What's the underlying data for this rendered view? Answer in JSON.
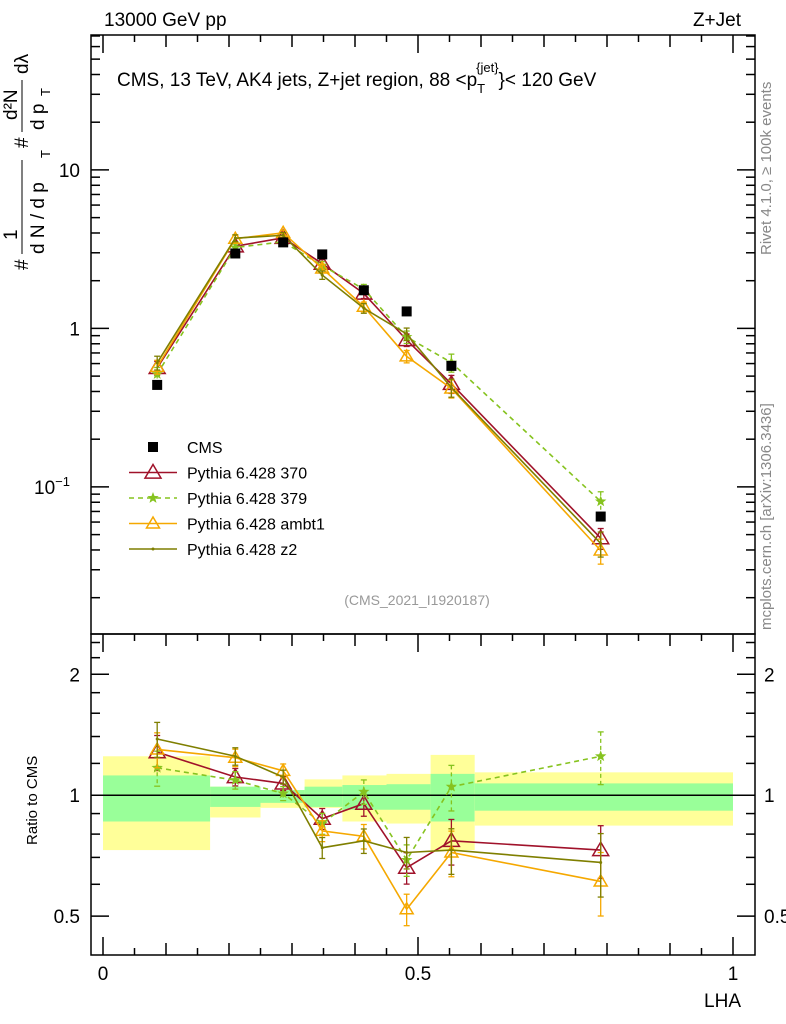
{
  "header": {
    "left": "13000 GeV pp",
    "right": "Z+Jet"
  },
  "side_labels": {
    "top": "Rivet 4.1.0, ≥ 100k events",
    "bottom": "mcplots.cern.ch [arXiv:1306.3436]"
  },
  "colors": {
    "cms": "#000000",
    "p370": "#a0122a",
    "p379": "#86c31f",
    "ambt1": "#f5a800",
    "z2": "#7f7f00",
    "band_outer": "#ffff99",
    "band_inner": "#99ff99"
  },
  "chart_data": [
    {
      "type": "line",
      "panel": "main",
      "title": "CMS, 13 TeV, AK4 jets, Z+jet region, 88 < p_T^{jet} < 120 GeV",
      "title_parts": {
        "pre": "CMS, 13 TeV, AK4 jets, Z+jet region, 88 <p",
        "sub": "T",
        "sup": "{jet}",
        "post": "}< 120 GeV"
      },
      "analysis_label": "(CMS_2021_I1920187)",
      "xlabel": "LHA",
      "ylabel": "1/(dN/dp_T) d²N/(dp_T dλ)",
      "ylabel_parts": {
        "num1": "1",
        "den1": "d N / d p",
        "num2": "d²N",
        "den2": "d p",
        "lam": "dλ",
        "T": "T",
        "hash": "#"
      },
      "yscale": "log",
      "xlim": [
        -0.02,
        1.03
      ],
      "ylim": [
        0.0118,
        71
      ],
      "ytick_labels": [
        {
          "v": 10,
          "label": "10"
        },
        {
          "v": 1,
          "label": "1"
        },
        {
          "v": 0.1,
          "label": "10",
          "sup": "−1"
        }
      ],
      "x": [
        0.086,
        0.21,
        0.286,
        0.348,
        0.414,
        0.482,
        0.553,
        0.79
      ],
      "series": [
        {
          "key": "cms",
          "name": "CMS",
          "values": [
            0.44,
            2.97,
            3.49,
            2.93,
            1.74,
            1.28,
            0.58,
            0.065
          ]
        },
        {
          "key": "p370",
          "name": "Pythia 6.428 370",
          "values": [
            0.563,
            3.3,
            3.73,
            2.56,
            1.66,
            0.845,
            0.447,
            0.0475
          ],
          "rel_err": [
            0.1,
            0.05,
            0.04,
            0.06,
            0.07,
            0.09,
            0.13,
            0.15
          ]
        },
        {
          "key": "p379",
          "name": "Pythia 6.428 379",
          "values": [
            0.515,
            3.24,
            3.52,
            2.49,
            1.77,
            0.883,
            0.609,
            0.081
          ],
          "rel_err": [
            0.1,
            0.05,
            0.04,
            0.06,
            0.07,
            0.09,
            0.13,
            0.15
          ]
        },
        {
          "key": "ambt1",
          "name": "Pythia 6.428 ambt1",
          "values": [
            0.572,
            3.68,
            4.01,
            2.39,
            1.37,
            0.666,
            0.418,
            0.0397
          ],
          "rel_err": [
            0.1,
            0.05,
            0.04,
            0.06,
            0.07,
            0.09,
            0.13,
            0.18
          ]
        },
        {
          "key": "z2",
          "name": "Pythia 6.428 z2",
          "values": [
            0.607,
            3.71,
            3.87,
            2.17,
            1.34,
            0.922,
            0.423,
            0.044
          ],
          "rel_err": [
            0.1,
            0.05,
            0.04,
            0.06,
            0.07,
            0.09,
            0.13,
            0.18
          ]
        }
      ]
    },
    {
      "type": "line",
      "panel": "ratio",
      "ylabel": "Ratio to CMS",
      "yscale": "log",
      "ylim": [
        0.4,
        2.52
      ],
      "ytick_labels": [
        {
          "v": 2,
          "label": "2"
        },
        {
          "v": 1,
          "label": "1"
        },
        {
          "v": 0.5,
          "label": "0.5"
        }
      ],
      "xtick_labels": [
        {
          "v": 0,
          "label": "0"
        },
        {
          "v": 0.5,
          "label": "0.5"
        },
        {
          "v": 1,
          "label": "1"
        }
      ],
      "bin_edges": [
        0,
        0.17,
        0.25,
        0.32,
        0.38,
        0.45,
        0.52,
        0.59,
        1.0
      ],
      "band_outer": [
        [
          0.73,
          1.25
        ],
        [
          0.88,
          1.05
        ],
        [
          0.93,
          1.03
        ],
        [
          0.93,
          1.095
        ],
        [
          0.86,
          1.12
        ],
        [
          0.85,
          1.13
        ],
        [
          0.73,
          1.26
        ],
        [
          0.84,
          1.14
        ]
      ],
      "band_inner": [
        [
          0.86,
          1.12
        ],
        [
          0.935,
          1.05
        ],
        [
          0.957,
          1.03
        ],
        [
          0.935,
          1.05
        ],
        [
          0.92,
          1.06
        ],
        [
          0.92,
          1.065
        ],
        [
          0.86,
          1.13
        ],
        [
          0.915,
          1.07
        ]
      ],
      "x": [
        0.086,
        0.21,
        0.286,
        0.348,
        0.414,
        0.482,
        0.553,
        0.79
      ],
      "series": [
        {
          "key": "p370",
          "name": "Pythia 6.428 370",
          "values": [
            1.28,
            1.11,
            1.07,
            0.874,
            0.953,
            0.66,
            0.77,
            0.73
          ]
        },
        {
          "key": "p379",
          "name": "Pythia 6.428 379",
          "values": [
            1.17,
            1.09,
            1.01,
            0.85,
            1.02,
            0.69,
            1.05,
            1.25
          ]
        },
        {
          "key": "ambt1",
          "name": "Pythia 6.428 ambt1",
          "values": [
            1.3,
            1.24,
            1.15,
            0.815,
            0.79,
            0.52,
            0.72,
            0.61
          ]
        },
        {
          "key": "z2",
          "name": "Pythia 6.428 z2",
          "values": [
            1.38,
            1.25,
            1.11,
            0.74,
            0.77,
            0.72,
            0.73,
            0.68
          ]
        }
      ]
    }
  ]
}
